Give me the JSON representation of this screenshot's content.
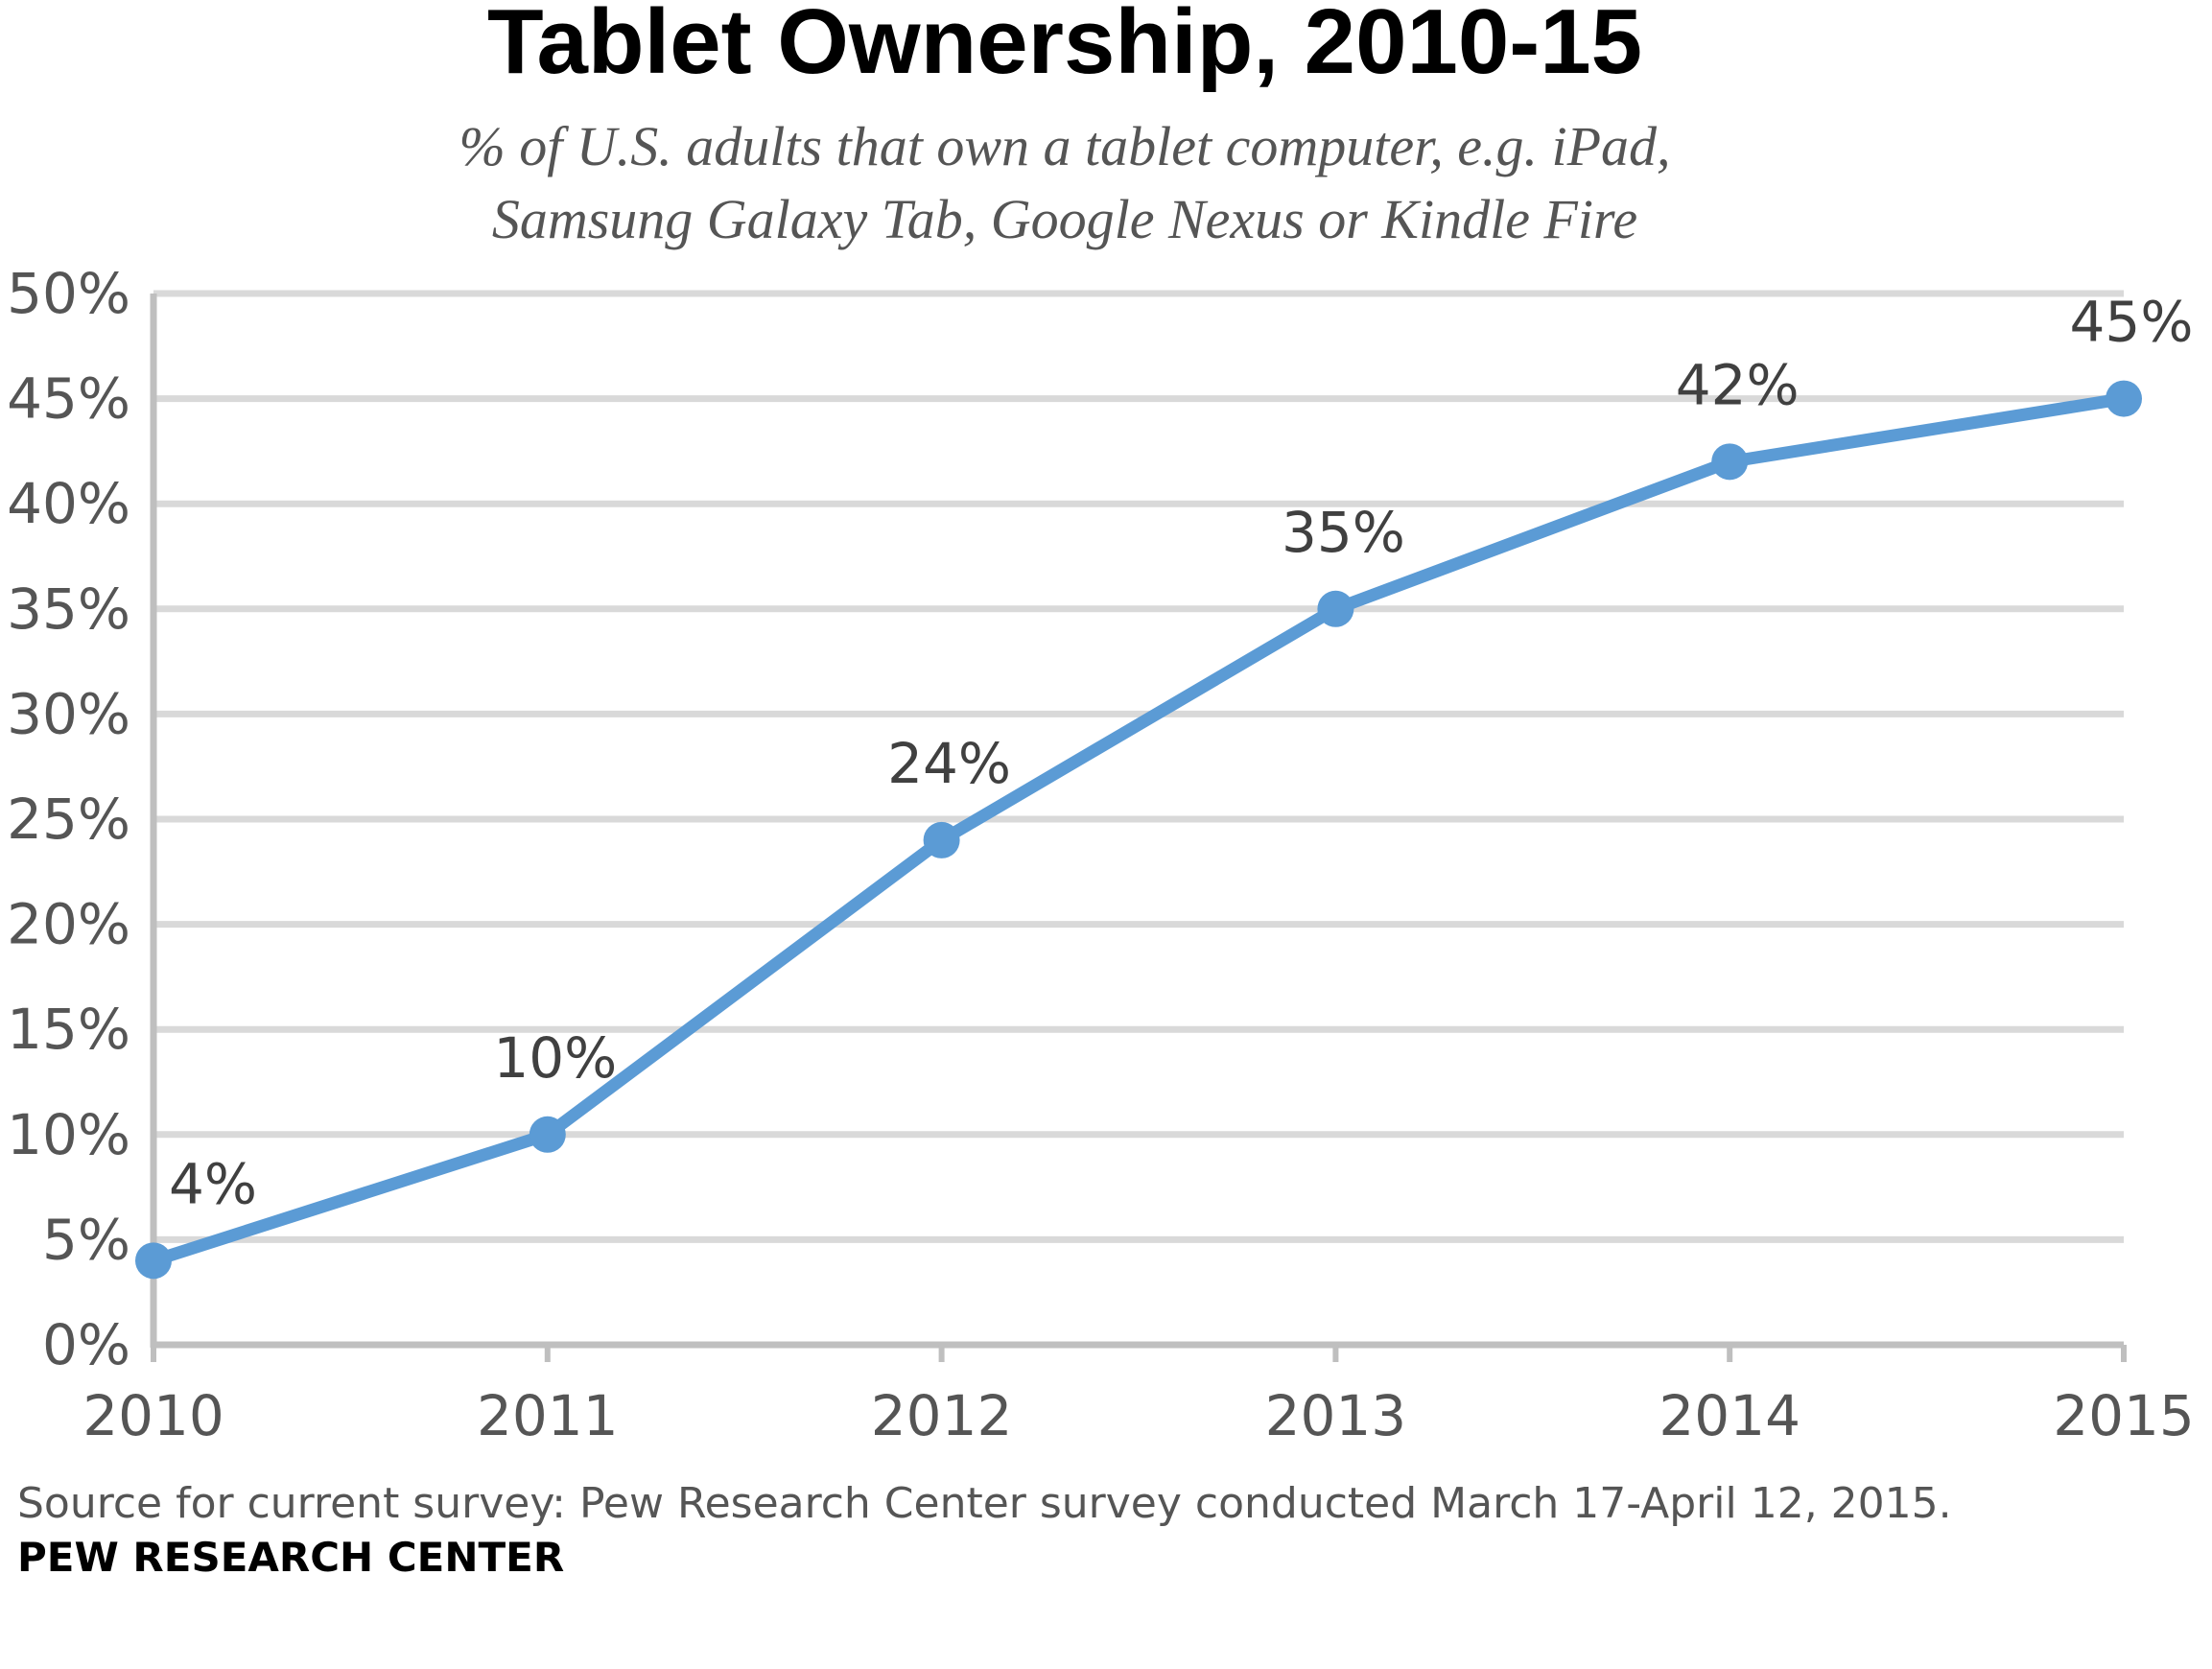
{
  "title": "Tablet Ownership, 2010-15",
  "subtitle_lines": [
    "% of U.S. adults that own a tablet computer, e.g. iPad,",
    "Samsung Galaxy Tab, Google Nexus or Kindle Fire"
  ],
  "source": "Source for current survey: Pew Research Center survey conducted March 17-April 12, 2015.",
  "brand": "PEW RESEARCH CENTER",
  "colors": {
    "line": "#5b9bd5",
    "grid": "#d9d9d9",
    "axis": "#bfbfbf"
  },
  "chart_data": {
    "type": "line",
    "categories": [
      "2010",
      "2011",
      "2012",
      "2013",
      "2014",
      "2015"
    ],
    "values": [
      4,
      10,
      24,
      35,
      42,
      45
    ],
    "data_labels": [
      "4%",
      "10%",
      "24%",
      "35%",
      "42%",
      "45%"
    ],
    "y_ticks": [
      "0%",
      "5%",
      "10%",
      "15%",
      "20%",
      "25%",
      "30%",
      "35%",
      "40%",
      "45%",
      "50%"
    ],
    "ylim": [
      0,
      50
    ],
    "ystep": 5,
    "grid": true,
    "xlabel": "",
    "ylabel": ""
  }
}
